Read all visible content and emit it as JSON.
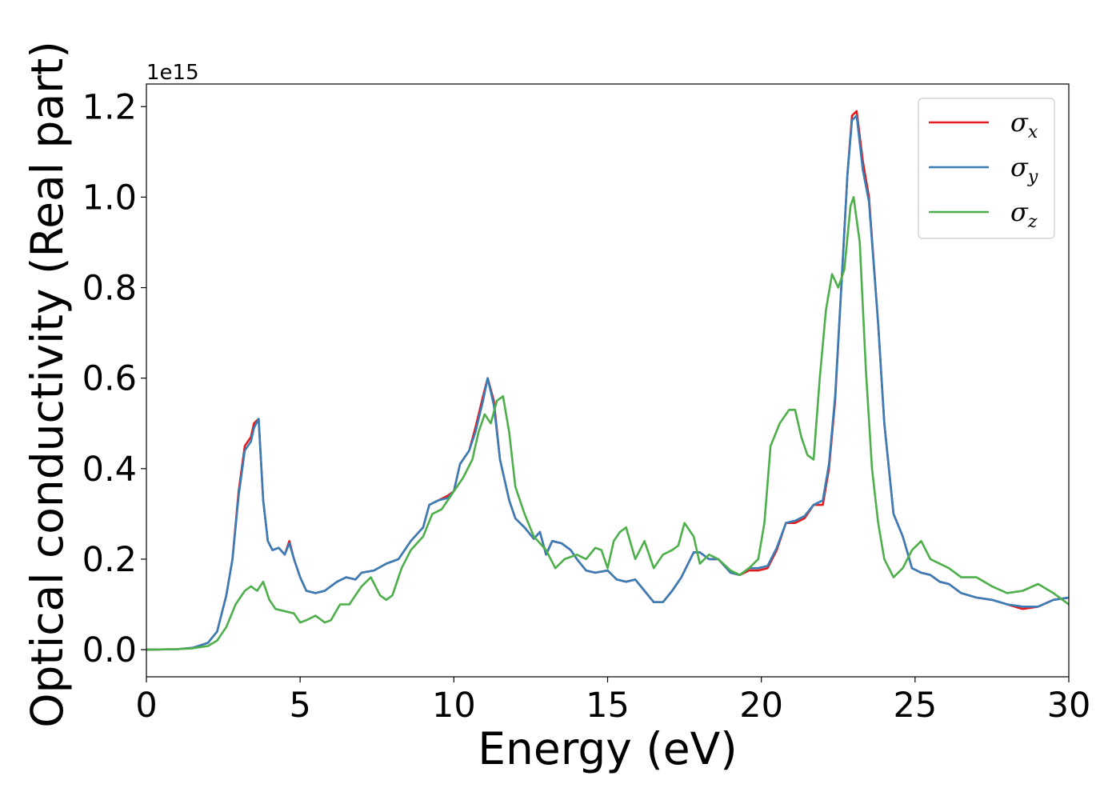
{
  "chart_data": {
    "type": "line",
    "xlabel": "Energy (eV)",
    "ylabel": "Optical conductivity (Real part)",
    "y_offset_label": "1e15",
    "xlim": [
      0,
      30
    ],
    "ylim": [
      -0.06,
      1.25
    ],
    "xticks": [
      0,
      5,
      10,
      15,
      20,
      25,
      30
    ],
    "xtick_labels": [
      "0",
      "5",
      "10",
      "15",
      "20",
      "25",
      "30"
    ],
    "yticks": [
      0.0,
      0.2,
      0.4,
      0.6,
      0.8,
      1.0,
      1.2
    ],
    "ytick_labels": [
      "0.0",
      "0.2",
      "0.4",
      "0.6",
      "0.8",
      "1.0",
      "1.2"
    ],
    "grid": false,
    "legend_position": "top-right",
    "series": [
      {
        "name": "σx",
        "symbol": "σ",
        "subscript": "x",
        "color": "#e41a1c",
        "x": [
          0,
          1,
          1.5,
          2,
          2.3,
          2.6,
          2.8,
          3.0,
          3.2,
          3.4,
          3.5,
          3.65,
          3.8,
          3.95,
          4.1,
          4.3,
          4.5,
          4.65,
          4.8,
          5.0,
          5.2,
          5.5,
          5.8,
          6.2,
          6.5,
          6.8,
          7.0,
          7.4,
          7.8,
          8.2,
          8.6,
          9.0,
          9.2,
          9.5,
          9.8,
          10.0,
          10.2,
          10.5,
          10.7,
          10.95,
          11.1,
          11.3,
          11.5,
          11.8,
          12.0,
          12.3,
          12.6,
          12.8,
          13.0,
          13.2,
          13.5,
          13.8,
          14.0,
          14.3,
          14.6,
          15.0,
          15.3,
          15.6,
          15.9,
          16.2,
          16.5,
          16.8,
          17.1,
          17.4,
          17.8,
          18.0,
          18.3,
          18.6,
          19.0,
          19.3,
          19.6,
          19.9,
          20.2,
          20.5,
          20.8,
          21.1,
          21.4,
          21.7,
          22.0,
          22.2,
          22.4,
          22.6,
          22.8,
          22.95,
          23.1,
          23.3,
          23.5,
          23.8,
          24.0,
          24.3,
          24.6,
          24.9,
          25.2,
          25.5,
          25.8,
          26.1,
          26.5,
          27.0,
          27.5,
          28.0,
          28.5,
          29.0,
          29.5,
          30.0
        ],
        "y": [
          0,
          0.001,
          0.004,
          0.015,
          0.04,
          0.12,
          0.2,
          0.35,
          0.45,
          0.47,
          0.5,
          0.51,
          0.33,
          0.24,
          0.22,
          0.225,
          0.21,
          0.24,
          0.2,
          0.16,
          0.13,
          0.125,
          0.13,
          0.15,
          0.16,
          0.155,
          0.17,
          0.175,
          0.19,
          0.2,
          0.24,
          0.27,
          0.32,
          0.33,
          0.34,
          0.35,
          0.41,
          0.44,
          0.49,
          0.56,
          0.6,
          0.55,
          0.42,
          0.33,
          0.29,
          0.27,
          0.245,
          0.26,
          0.21,
          0.24,
          0.235,
          0.22,
          0.2,
          0.175,
          0.17,
          0.175,
          0.155,
          0.15,
          0.155,
          0.13,
          0.105,
          0.105,
          0.13,
          0.16,
          0.215,
          0.215,
          0.2,
          0.2,
          0.17,
          0.165,
          0.175,
          0.175,
          0.18,
          0.22,
          0.28,
          0.28,
          0.29,
          0.32,
          0.32,
          0.4,
          0.55,
          0.8,
          1.05,
          1.18,
          1.19,
          1.08,
          1.0,
          0.72,
          0.5,
          0.3,
          0.25,
          0.18,
          0.17,
          0.165,
          0.15,
          0.145,
          0.125,
          0.115,
          0.11,
          0.1,
          0.09,
          0.095,
          0.11,
          0.115
        ]
      },
      {
        "name": "σy",
        "symbol": "σ",
        "subscript": "y",
        "color": "#377eb8",
        "x": [
          0,
          1,
          1.5,
          2,
          2.3,
          2.6,
          2.8,
          3.0,
          3.2,
          3.4,
          3.5,
          3.65,
          3.8,
          3.95,
          4.1,
          4.3,
          4.5,
          4.65,
          4.8,
          5.0,
          5.2,
          5.5,
          5.8,
          6.2,
          6.5,
          6.8,
          7.0,
          7.4,
          7.8,
          8.2,
          8.6,
          9.0,
          9.2,
          9.5,
          9.8,
          10.0,
          10.2,
          10.5,
          10.7,
          10.95,
          11.1,
          11.3,
          11.5,
          11.8,
          12.0,
          12.3,
          12.6,
          12.8,
          13.0,
          13.2,
          13.5,
          13.8,
          14.0,
          14.3,
          14.6,
          15.0,
          15.3,
          15.6,
          15.9,
          16.2,
          16.5,
          16.8,
          17.1,
          17.4,
          17.8,
          18.0,
          18.3,
          18.6,
          19.0,
          19.3,
          19.6,
          19.9,
          20.2,
          20.5,
          20.8,
          21.1,
          21.4,
          21.7,
          22.0,
          22.2,
          22.4,
          22.6,
          22.8,
          22.95,
          23.1,
          23.3,
          23.5,
          23.8,
          24.0,
          24.3,
          24.6,
          24.9,
          25.2,
          25.5,
          25.8,
          26.1,
          26.5,
          27.0,
          27.5,
          28.0,
          28.5,
          29.0,
          29.5,
          30.0
        ],
        "y": [
          0,
          0.001,
          0.004,
          0.015,
          0.04,
          0.12,
          0.2,
          0.34,
          0.44,
          0.46,
          0.49,
          0.51,
          0.33,
          0.24,
          0.22,
          0.225,
          0.21,
          0.235,
          0.2,
          0.16,
          0.13,
          0.125,
          0.13,
          0.15,
          0.16,
          0.155,
          0.17,
          0.175,
          0.19,
          0.2,
          0.24,
          0.27,
          0.32,
          0.33,
          0.335,
          0.35,
          0.41,
          0.44,
          0.48,
          0.55,
          0.6,
          0.54,
          0.42,
          0.33,
          0.29,
          0.27,
          0.245,
          0.26,
          0.21,
          0.24,
          0.235,
          0.22,
          0.2,
          0.175,
          0.17,
          0.175,
          0.155,
          0.15,
          0.155,
          0.13,
          0.105,
          0.105,
          0.13,
          0.16,
          0.215,
          0.215,
          0.2,
          0.2,
          0.17,
          0.165,
          0.18,
          0.18,
          0.185,
          0.225,
          0.28,
          0.285,
          0.295,
          0.32,
          0.33,
          0.41,
          0.56,
          0.8,
          1.05,
          1.17,
          1.18,
          1.06,
          0.99,
          0.72,
          0.5,
          0.3,
          0.25,
          0.18,
          0.17,
          0.165,
          0.15,
          0.145,
          0.125,
          0.115,
          0.11,
          0.1,
          0.095,
          0.095,
          0.11,
          0.115
        ]
      },
      {
        "name": "σz",
        "symbol": "σ",
        "subscript": "z",
        "color": "#4daf4a",
        "x": [
          0,
          1,
          1.5,
          2,
          2.3,
          2.6,
          2.9,
          3.2,
          3.4,
          3.6,
          3.8,
          4.0,
          4.2,
          4.5,
          4.8,
          5.0,
          5.2,
          5.5,
          5.8,
          6.0,
          6.3,
          6.6,
          6.8,
          7.0,
          7.3,
          7.6,
          7.8,
          8.0,
          8.3,
          8.6,
          9.0,
          9.3,
          9.6,
          10.0,
          10.3,
          10.6,
          10.8,
          11.0,
          11.2,
          11.4,
          11.6,
          11.8,
          12.0,
          12.3,
          12.6,
          13.0,
          13.3,
          13.6,
          14.0,
          14.3,
          14.6,
          14.8,
          15.0,
          15.2,
          15.4,
          15.6,
          15.9,
          16.2,
          16.5,
          16.8,
          17.1,
          17.3,
          17.5,
          17.8,
          18.0,
          18.3,
          18.6,
          19.0,
          19.3,
          19.6,
          19.9,
          20.1,
          20.3,
          20.6,
          20.9,
          21.1,
          21.3,
          21.5,
          21.7,
          21.9,
          22.1,
          22.3,
          22.5,
          22.7,
          22.9,
          23.0,
          23.2,
          23.4,
          23.6,
          23.8,
          24.0,
          24.3,
          24.6,
          24.9,
          25.2,
          25.5,
          25.8,
          26.1,
          26.5,
          27.0,
          27.5,
          28.0,
          28.5,
          29.0,
          29.5,
          30.0
        ],
        "y": [
          0,
          0.001,
          0.003,
          0.008,
          0.02,
          0.05,
          0.1,
          0.13,
          0.14,
          0.13,
          0.15,
          0.11,
          0.09,
          0.085,
          0.08,
          0.06,
          0.065,
          0.075,
          0.06,
          0.065,
          0.1,
          0.1,
          0.12,
          0.14,
          0.16,
          0.12,
          0.11,
          0.12,
          0.18,
          0.22,
          0.25,
          0.3,
          0.31,
          0.35,
          0.38,
          0.42,
          0.48,
          0.52,
          0.5,
          0.55,
          0.56,
          0.48,
          0.36,
          0.3,
          0.25,
          0.22,
          0.18,
          0.2,
          0.21,
          0.2,
          0.225,
          0.22,
          0.18,
          0.24,
          0.26,
          0.27,
          0.2,
          0.24,
          0.18,
          0.21,
          0.22,
          0.23,
          0.28,
          0.25,
          0.19,
          0.21,
          0.2,
          0.175,
          0.165,
          0.18,
          0.2,
          0.28,
          0.45,
          0.5,
          0.53,
          0.53,
          0.47,
          0.43,
          0.42,
          0.6,
          0.75,
          0.83,
          0.8,
          0.84,
          0.98,
          1.0,
          0.9,
          0.62,
          0.4,
          0.28,
          0.2,
          0.16,
          0.18,
          0.22,
          0.24,
          0.2,
          0.19,
          0.18,
          0.16,
          0.16,
          0.14,
          0.125,
          0.13,
          0.145,
          0.125,
          0.1
        ]
      }
    ]
  }
}
